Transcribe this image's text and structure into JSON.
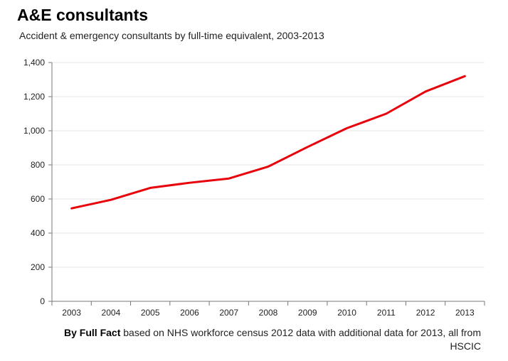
{
  "title": "A&E consultants",
  "subtitle": "Accident & emergency consultants by full-time equivalent, 2003-2013",
  "source": {
    "bold": "By Full Fact",
    "text": " based on NHS workforce census 2012 data with additional data for 2013, all from HSCIC"
  },
  "colors": {
    "line": "#e8000b",
    "grid": "#e6e6e6",
    "axis": "#777777"
  },
  "chart_data": {
    "type": "line",
    "title": "A&E consultants",
    "subtitle": "Accident & emergency consultants by full-time equivalent, 2003-2013",
    "xlabel": "",
    "ylabel": "",
    "categories": [
      "2003",
      "2004",
      "2005",
      "2006",
      "2007",
      "2008",
      "2009",
      "2010",
      "2011",
      "2012",
      "2013"
    ],
    "series": [
      {
        "values": [
          545,
          595,
          665,
          695,
          720,
          790,
          905,
          1015,
          1100,
          1230,
          1320
        ]
      }
    ],
    "ylim": [
      0,
      1400
    ],
    "yticks": [
      0,
      200,
      400,
      600,
      800,
      1000,
      1200,
      1400
    ],
    "ytick_labels": [
      "0",
      "200",
      "400",
      "600",
      "800",
      "1,000",
      "1,200",
      "1,400"
    ],
    "grid": true
  }
}
